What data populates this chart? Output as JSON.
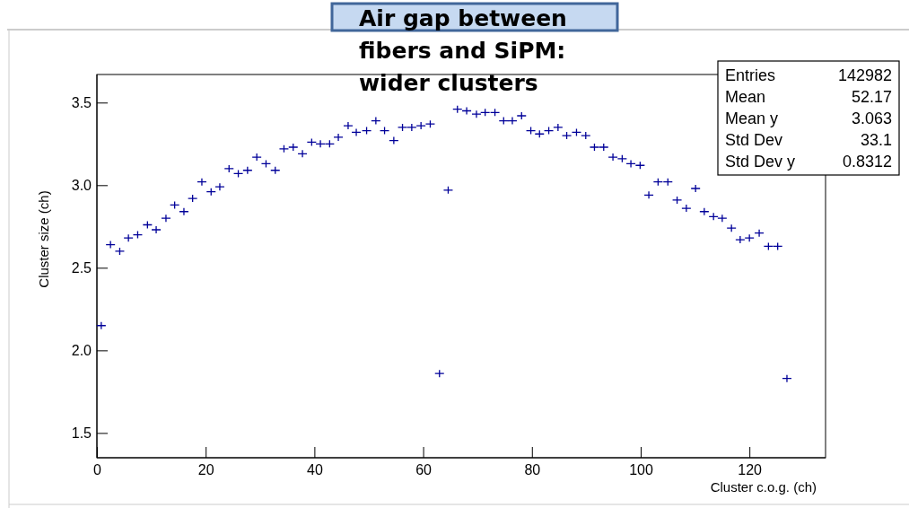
{
  "chart_data": {
    "type": "scatter",
    "xlabel": "Cluster c.o.g. (ch)",
    "ylabel": "Cluster size (ch)",
    "annotations": [
      "Air gap between fibers and SiPM: wider clusters",
      "Entries 142982",
      "Mean 52.17",
      "Mean y 3.063",
      "Std Dev 33.1",
      "Std Dev y 0.8312"
    ],
    "xlim": [
      0,
      134
    ],
    "xticks": [
      0,
      20,
      40,
      60,
      80,
      100,
      120
    ],
    "ylim": [
      1.35,
      3.67
    ],
    "yticks": [
      1.5,
      {
        "value": 2,
        "label": "2.0"
      },
      2.5,
      {
        "value": 3,
        "label": "3.0"
      },
      3.5
    ],
    "grid": false,
    "marker": "cross",
    "series": [
      {
        "color": "#000099",
        "x": [
          0.8,
          2.5,
          4.2,
          5.8,
          7.5,
          9.3,
          10.9,
          12.7,
          14.3,
          16.0,
          17.6,
          19.3,
          21.0,
          22.6,
          24.3,
          26.0,
          27.7,
          29.4,
          31.1,
          32.8,
          34.4,
          36.1,
          37.8,
          39.5,
          41.1,
          42.8,
          44.4,
          46.2,
          47.7,
          49.6,
          51.3,
          52.9,
          54.6,
          56.2,
          57.9,
          59.6,
          61.3,
          63.0,
          64.6,
          66.3,
          68.0,
          69.8,
          71.4,
          73.2,
          74.8,
          76.4,
          78.1,
          79.8,
          81.4,
          83.1,
          84.8,
          86.4,
          88.2,
          89.9,
          91.5,
          93.2,
          94.9,
          96.6,
          98.2,
          99.9,
          101.5,
          103.2,
          105.0,
          106.7,
          108.4,
          110.1,
          111.7,
          113.4,
          115.0,
          116.7,
          118.3,
          120.0,
          121.8,
          123.5,
          125.2,
          126.9
        ],
        "values": [
          2.15,
          2.64,
          2.6,
          2.68,
          2.7,
          2.76,
          2.73,
          2.8,
          2.88,
          2.84,
          2.92,
          3.02,
          2.96,
          2.99,
          3.1,
          3.07,
          3.09,
          3.17,
          3.13,
          3.09,
          3.22,
          3.23,
          3.19,
          3.26,
          3.25,
          3.25,
          3.29,
          3.36,
          3.32,
          3.33,
          3.39,
          3.33,
          3.27,
          3.35,
          3.35,
          3.36,
          3.37,
          1.86,
          2.97,
          3.46,
          3.45,
          3.43,
          3.44,
          3.44,
          3.39,
          3.39,
          3.42,
          3.33,
          3.31,
          3.33,
          3.35,
          3.3,
          3.32,
          3.3,
          3.23,
          3.23,
          3.17,
          3.16,
          3.13,
          3.12,
          2.94,
          3.02,
          3.02,
          2.91,
          2.86,
          2.98,
          2.84,
          2.81,
          2.8,
          2.74,
          2.67,
          2.68,
          2.71,
          2.63,
          2.63,
          1.83
        ]
      }
    ]
  }
}
